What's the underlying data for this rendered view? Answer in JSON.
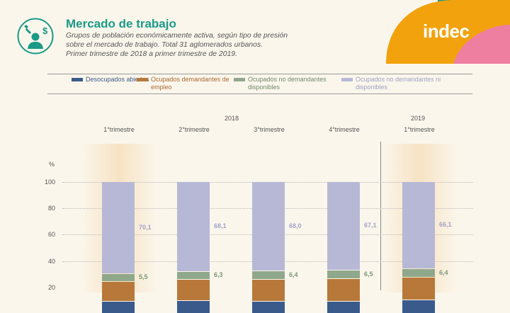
{
  "header": {
    "title": "Mercado de trabajo",
    "subtitle_lines": [
      "Grupos de población económicamente activa, según tipo de presión",
      "sobre el mercado de trabajo. Total 31 aglomerados urbanos.",
      "Primer trimestre de 2018 a primer trimestre de 2019."
    ],
    "brand": "indec",
    "icon": "worker-tools-money-icon"
  },
  "colors": {
    "title": "#1a9a87",
    "desocupados": "#3a5a8c",
    "ocupados_demandantes": "#b8783a",
    "ocupados_no_dem_disp": "#8fa88b",
    "ocupados_no_dem_no_disp": "#b7b8d6",
    "brand_orange": "#f2a20d",
    "brand_pink": "#ee7fa0",
    "brand_teal": "#1a9a87"
  },
  "chart_data": {
    "type": "bar",
    "stacked": true,
    "unit": "%",
    "ylim": [
      0,
      100
    ],
    "yticks": [
      "100",
      "80",
      "60",
      "40",
      "20"
    ],
    "years": [
      "2018",
      "2019"
    ],
    "categories": [
      "1°trimestre",
      "2°trimestre",
      "3°trimestre",
      "4°trimestre",
      "1°trimestre"
    ],
    "series": [
      {
        "name": "Desocupados abiertos",
        "values": [
          9.1,
          9.6,
          9.0,
          9.1,
          10.1
        ]
      },
      {
        "name": "Ocupados demandantes de empleo",
        "values": [
          15.3,
          16.0,
          16.6,
          17.3,
          17.4
        ]
      },
      {
        "name": "Ocupados no demandantes disponibles",
        "values": [
          5.5,
          6.3,
          6.4,
          6.5,
          6.4
        ]
      },
      {
        "name": "Ocupados no demandantes ni disponibles",
        "values": [
          70.1,
          68.1,
          68.0,
          67.1,
          66.1
        ]
      }
    ],
    "data_labels": [
      [
        "5,5",
        "70,1"
      ],
      [
        "6,3",
        "68,1"
      ],
      [
        "6,4",
        "68,0"
      ],
      [
        "6,5",
        "67,1"
      ],
      [
        "6,4",
        "66,1"
      ]
    ]
  }
}
